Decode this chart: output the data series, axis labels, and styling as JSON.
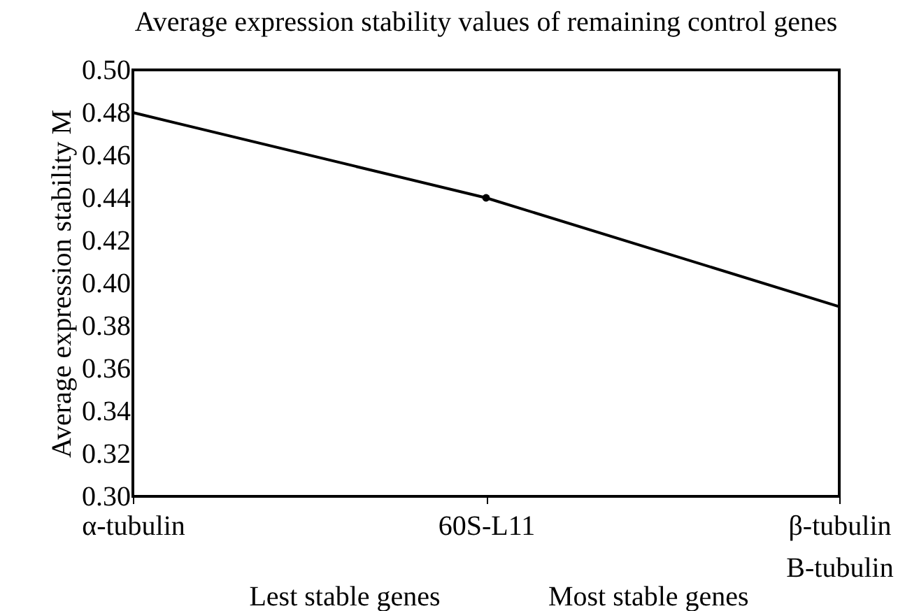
{
  "chart_data": {
    "type": "line",
    "title": "Average expression stability values of remaining control genes",
    "ylabel": "Average expression stability M",
    "categories": [
      "α-tubulin",
      "60S-L11",
      "β-tubulin\nB-tubulin"
    ],
    "series": [
      {
        "color": "#000000",
        "values": [
          0.48,
          0.44,
          0.389
        ],
        "marker": "none"
      },
      {
        "type": "scatter",
        "color": "#000000",
        "x": [
          "60S-L11"
        ],
        "values": [
          0.44
        ],
        "marker": "circle"
      }
    ],
    "ylim": [
      0.3,
      0.5
    ],
    "yticks": [
      {
        "value": 0.3,
        "label": "0.30"
      },
      {
        "value": 0.32,
        "label": "0.32"
      },
      {
        "value": 0.34,
        "label": "0.34"
      },
      {
        "value": 0.36,
        "label": "0.36"
      },
      {
        "value": 0.38,
        "label": "0.38"
      },
      {
        "value": 0.4,
        "label": "0.40"
      },
      {
        "value": 0.42,
        "label": "0.42"
      },
      {
        "value": 0.44,
        "label": "0.44"
      },
      {
        "value": 0.46,
        "label": "0.46"
      },
      {
        "value": 0.48,
        "label": "0.48"
      },
      {
        "value": 0.5,
        "label": "0.50"
      }
    ],
    "grid": false,
    "line_style": "solid",
    "annotations": [
      "Lest stable genes",
      "Most stable genes"
    ]
  }
}
